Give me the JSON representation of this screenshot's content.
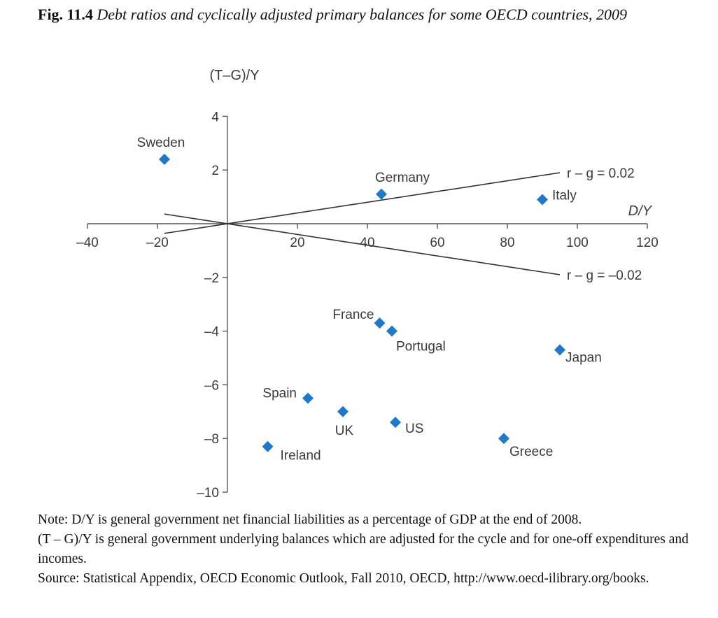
{
  "caption": {
    "figure_label": "Fig. 11.4",
    "title": "Debt ratios and cyclically adjusted primary balances for some OECD countries, 2009"
  },
  "chart_data": {
    "type": "scatter",
    "xlabel": "D/Y",
    "ylabel": "(T–G)/Y",
    "xlim": [
      -40,
      120
    ],
    "ylim": [
      -10,
      4
    ],
    "x_ticks": [
      -40,
      -20,
      20,
      40,
      60,
      80,
      100,
      120
    ],
    "x_tick_labels": [
      "–40",
      "–20",
      "20",
      "40",
      "60",
      "80",
      "100",
      "120"
    ],
    "y_ticks": [
      4,
      2,
      -2,
      -4,
      -6,
      -8,
      -10
    ],
    "y_tick_labels": [
      "4",
      "2",
      "–2",
      "–4",
      "–6",
      "–8",
      "–10"
    ],
    "grid": false,
    "marker_color": "#1f78c8",
    "points": [
      {
        "label": "Sweden",
        "x": -18,
        "y": 2.4
      },
      {
        "label": "Germany",
        "x": 44,
        "y": 1.1
      },
      {
        "label": "Italy",
        "x": 90,
        "y": 0.9
      },
      {
        "label": "France",
        "x": 43.5,
        "y": -3.7
      },
      {
        "label": "Portugal",
        "x": 47,
        "y": -4.0
      },
      {
        "label": "Japan",
        "x": 95,
        "y": -4.7
      },
      {
        "label": "Spain",
        "x": 23,
        "y": -6.5
      },
      {
        "label": "UK",
        "x": 33,
        "y": -7.0
      },
      {
        "label": "US",
        "x": 48,
        "y": -7.4
      },
      {
        "label": "Ireland",
        "x": 11.5,
        "y": -8.3
      },
      {
        "label": "Greece",
        "x": 79,
        "y": -8.0
      }
    ],
    "lines": [
      {
        "label": "r – g = 0.02",
        "slope": 0.02,
        "x_range": [
          -18,
          95
        ]
      },
      {
        "label": "r – g = –0.02",
        "slope": -0.02,
        "x_range": [
          -18,
          95
        ]
      }
    ]
  },
  "note": {
    "text": "Note: D/Y is general government net financial liabilities as a percentage of GDP at the end of 2008.\n(T – G)/Y is general government underlying balances which are adjusted for the cycle and for one-off expenditures and incomes.\nSource: Statistical Appendix, OECD Economic Outlook, Fall 2010, OECD, http://www.oecd-ilibrary.org/books."
  }
}
